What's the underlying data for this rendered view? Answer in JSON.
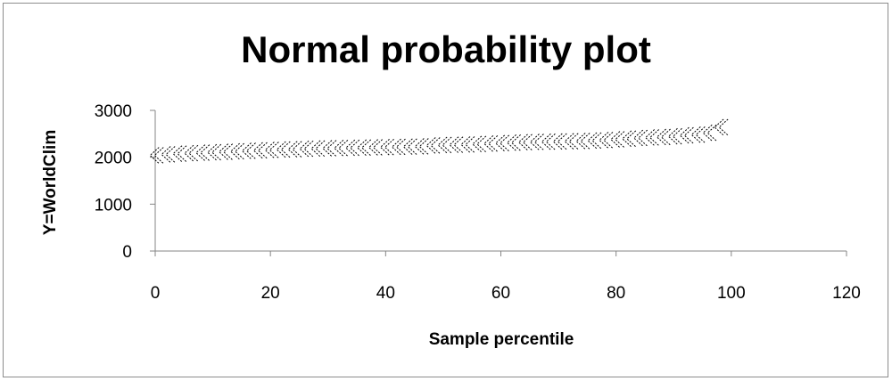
{
  "chart_data": {
    "type": "scatter",
    "title": "Normal probability plot",
    "xlabel": "Sample percentile",
    "ylabel": "Y=WorldClim",
    "xlim": [
      0,
      120
    ],
    "ylim": [
      0,
      3000
    ],
    "xticks": [
      0,
      20,
      40,
      60,
      80,
      100,
      120
    ],
    "yticks": [
      0,
      1000,
      2000,
      3000
    ],
    "grid": false,
    "legend": "none",
    "marker": "chevron-x",
    "marker_color": "#000000",
    "series": [
      {
        "x": [
          0.5,
          2.5,
          4.5,
          6.5,
          8.5,
          10.5,
          12.5,
          14.5,
          16.5,
          18.5,
          20.5,
          22.5,
          24.5,
          26.5,
          28.5,
          30.5,
          32.5,
          34.5,
          36.5,
          38.5,
          40.5,
          42.5,
          44.5,
          46.5,
          48.5,
          50.5,
          52.5,
          54.5,
          56.5,
          58.5,
          60.5,
          62.5,
          64.5,
          66.5,
          68.5,
          70.5,
          72.5,
          74.5,
          76.5,
          78.5,
          80.5,
          82.5,
          84.5,
          86.5,
          88.5,
          90.5,
          92.5,
          94.5,
          96.5,
          98.5
        ],
        "y": [
          2040,
          2060,
          2075,
          2085,
          2095,
          2105,
          2115,
          2125,
          2135,
          2145,
          2155,
          2165,
          2170,
          2180,
          2185,
          2190,
          2195,
          2200,
          2205,
          2210,
          2215,
          2220,
          2225,
          2230,
          2250,
          2260,
          2265,
          2270,
          2280,
          2290,
          2300,
          2310,
          2320,
          2325,
          2330,
          2335,
          2340,
          2345,
          2355,
          2365,
          2380,
          2395,
          2410,
          2420,
          2430,
          2445,
          2465,
          2480,
          2520,
          2640
        ]
      }
    ]
  }
}
